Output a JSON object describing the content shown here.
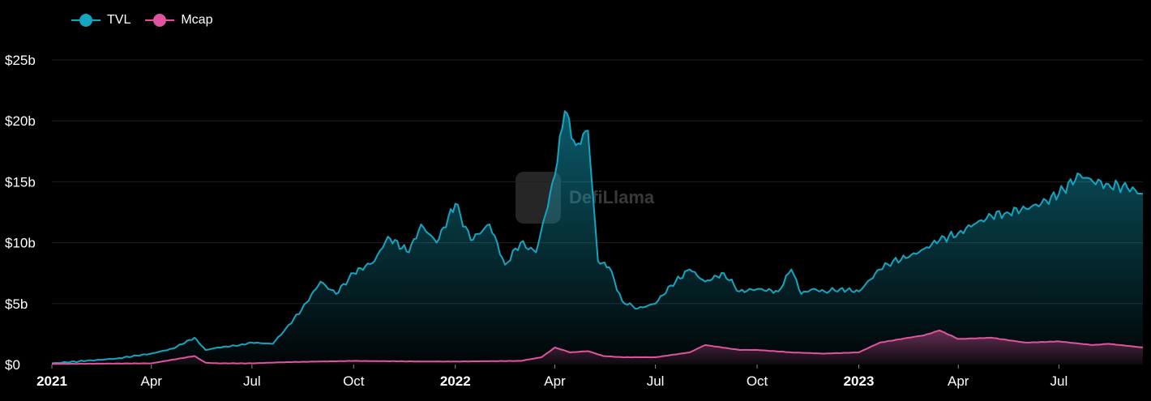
{
  "legend": [
    {
      "name": "TVL",
      "color": "#14a5c0"
    },
    {
      "name": "Mcap",
      "color": "#e0539f"
    }
  ],
  "watermark": "DefiLlama",
  "chart_data": {
    "type": "area",
    "title": "",
    "xlabel": "",
    "ylabel": "",
    "ylim": [
      0,
      25
    ],
    "y_unit": "billion USD",
    "y_ticks": [
      "$0",
      "$5b",
      "$10b",
      "$15b",
      "$20b",
      "$25b"
    ],
    "y_tick_values": [
      0,
      5,
      10,
      15,
      20,
      25
    ],
    "x_ticks": [
      "2021",
      "Apr",
      "Jul",
      "Oct",
      "2022",
      "Apr",
      "Jul",
      "Oct",
      "2023",
      "Apr",
      "Jul"
    ],
    "x_tick_dates": [
      "2021-01-01",
      "2021-04-01",
      "2021-07-01",
      "2021-10-01",
      "2022-01-01",
      "2022-04-01",
      "2022-07-01",
      "2022-10-01",
      "2023-01-01",
      "2023-04-01",
      "2023-07-01"
    ],
    "x_tick_bold": [
      true,
      false,
      false,
      false,
      true,
      false,
      false,
      false,
      true,
      false,
      false
    ],
    "xlim": [
      "2021-01-01",
      "2023-09-15"
    ],
    "grid": "horizontal",
    "legend_position": "top-left",
    "series": [
      {
        "name": "TVL",
        "color": "#14a5c0",
        "x": [
          "2021-01-01",
          "2021-02-01",
          "2021-03-01",
          "2021-04-01",
          "2021-04-20",
          "2021-05-10",
          "2021-05-20",
          "2021-06-01",
          "2021-06-20",
          "2021-07-01",
          "2021-07-20",
          "2021-08-01",
          "2021-08-15",
          "2021-09-01",
          "2021-09-15",
          "2021-10-01",
          "2021-10-20",
          "2021-11-01",
          "2021-11-20",
          "2021-12-01",
          "2021-12-15",
          "2022-01-01",
          "2022-01-15",
          "2022-02-01",
          "2022-02-15",
          "2022-03-01",
          "2022-03-15",
          "2022-04-01",
          "2022-04-10",
          "2022-04-20",
          "2022-05-01",
          "2022-05-10",
          "2022-05-20",
          "2022-06-01",
          "2022-06-15",
          "2022-07-01",
          "2022-07-15",
          "2022-08-01",
          "2022-08-15",
          "2022-09-01",
          "2022-09-15",
          "2022-10-01",
          "2022-10-20",
          "2022-11-01",
          "2022-11-10",
          "2022-11-20",
          "2022-12-01",
          "2022-12-15",
          "2023-01-01",
          "2023-01-20",
          "2023-02-01",
          "2023-02-15",
          "2023-03-01",
          "2023-03-15",
          "2023-04-01",
          "2023-04-15",
          "2023-05-01",
          "2023-05-15",
          "2023-06-01",
          "2023-06-15",
          "2023-07-01",
          "2023-07-20",
          "2023-08-01",
          "2023-08-15",
          "2023-09-01",
          "2023-09-15"
        ],
        "values": [
          0.1,
          0.3,
          0.5,
          0.9,
          1.3,
          2.2,
          1.2,
          1.4,
          1.6,
          1.8,
          1.7,
          3.0,
          4.5,
          6.8,
          5.8,
          7.5,
          8.5,
          10.5,
          9.2,
          11.5,
          10.0,
          13.2,
          10.2,
          11.5,
          8.2,
          10.0,
          9.2,
          15.5,
          20.8,
          18.0,
          19.2,
          8.5,
          8.0,
          5.2,
          4.6,
          5.0,
          6.5,
          7.8,
          6.8,
          7.5,
          6.0,
          6.2,
          6.0,
          7.8,
          5.8,
          6.2,
          6.0,
          6.2,
          6.0,
          7.8,
          8.5,
          8.8,
          9.5,
          10.2,
          10.8,
          11.5,
          12.2,
          12.5,
          12.8,
          13.2,
          14.0,
          15.6,
          15.0,
          14.8,
          14.5,
          14.0
        ]
      },
      {
        "name": "Mcap",
        "color": "#e0539f",
        "x": [
          "2021-01-01",
          "2021-04-01",
          "2021-05-10",
          "2021-05-20",
          "2021-06-01",
          "2021-07-01",
          "2021-08-01",
          "2021-10-01",
          "2021-12-01",
          "2022-01-01",
          "2022-03-01",
          "2022-03-20",
          "2022-04-01",
          "2022-04-15",
          "2022-05-01",
          "2022-05-15",
          "2022-06-01",
          "2022-07-01",
          "2022-08-01",
          "2022-08-15",
          "2022-09-15",
          "2022-10-01",
          "2022-11-01",
          "2022-12-01",
          "2023-01-01",
          "2023-01-20",
          "2023-02-15",
          "2023-03-01",
          "2023-03-15",
          "2023-04-01",
          "2023-05-01",
          "2023-06-01",
          "2023-07-01",
          "2023-08-01",
          "2023-08-15",
          "2023-09-15"
        ],
        "values": [
          0.05,
          0.1,
          0.7,
          0.15,
          0.1,
          0.1,
          0.2,
          0.3,
          0.25,
          0.25,
          0.3,
          0.6,
          1.4,
          1.0,
          1.1,
          0.7,
          0.6,
          0.6,
          1.0,
          1.6,
          1.2,
          1.2,
          1.0,
          0.9,
          1.0,
          1.8,
          2.2,
          2.4,
          2.8,
          2.1,
          2.2,
          1.8,
          1.9,
          1.6,
          1.7,
          1.4
        ]
      }
    ]
  }
}
